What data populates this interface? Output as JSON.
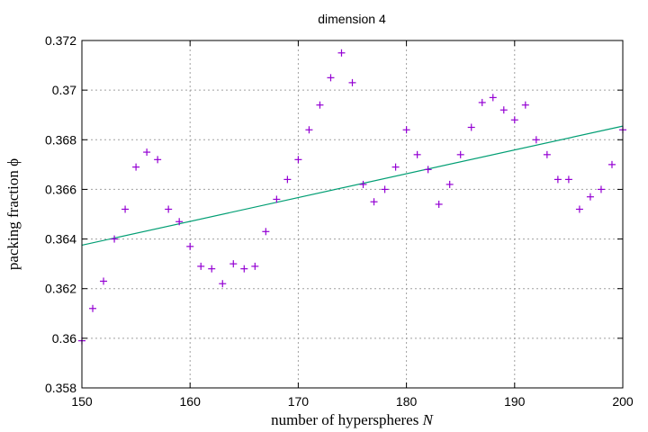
{
  "chart_data": {
    "type": "scatter",
    "title": "dimension 4",
    "xlabel_prefix": "number of hyperspheres",
    "xlabel_var": "N",
    "ylabel_prefix": "packing fraction",
    "ylabel_var": "ϕ",
    "xlim": [
      150,
      200
    ],
    "ylim": [
      0.358,
      0.372
    ],
    "xticks": [
      150,
      160,
      170,
      180,
      190,
      200
    ],
    "xtick_labels": [
      "150",
      "160",
      "170",
      "180",
      "190",
      "200"
    ],
    "yticks": [
      0.358,
      0.36,
      0.362,
      0.364,
      0.366,
      0.368,
      0.37,
      0.372
    ],
    "ytick_labels": [
      "0.358",
      "0.36",
      "0.362",
      "0.364",
      "0.366",
      "0.368",
      "0.37",
      "0.372"
    ],
    "grid": true,
    "series": [
      {
        "marker": "plus",
        "color": "#9400d3",
        "x": [
          150,
          151,
          152,
          153,
          154,
          155,
          156,
          157,
          158,
          159,
          160,
          161,
          162,
          163,
          164,
          165,
          166,
          167,
          168,
          169,
          170,
          171,
          172,
          173,
          174,
          175,
          176,
          177,
          178,
          179,
          180,
          181,
          182,
          183,
          184,
          185,
          186,
          187,
          188,
          189,
          190,
          191,
          192,
          193,
          194,
          195,
          196,
          197,
          198,
          199,
          200
        ],
        "y": [
          0.3599,
          0.3612,
          0.3623,
          0.364,
          0.3652,
          0.3669,
          0.3675,
          0.3672,
          0.3652,
          0.3647,
          0.3637,
          0.3629,
          0.3628,
          0.3622,
          0.363,
          0.3628,
          0.3629,
          0.3643,
          0.3656,
          0.3664,
          0.3672,
          0.3684,
          0.3694,
          0.3705,
          0.3715,
          0.3703,
          0.3662,
          0.3655,
          0.366,
          0.3669,
          0.3684,
          0.3674,
          0.3668,
          0.3654,
          0.3662,
          0.3674,
          0.3685,
          0.3695,
          0.3697,
          0.3692,
          0.3688,
          0.3694,
          0.368,
          0.3674,
          0.3664,
          0.3664,
          0.3652,
          0.3657,
          0.366,
          0.367,
          0.3684
        ]
      },
      {
        "type": "line",
        "color": "#009e73",
        "x": [
          150,
          200
        ],
        "y": [
          0.36375,
          0.36855
        ]
      }
    ]
  }
}
